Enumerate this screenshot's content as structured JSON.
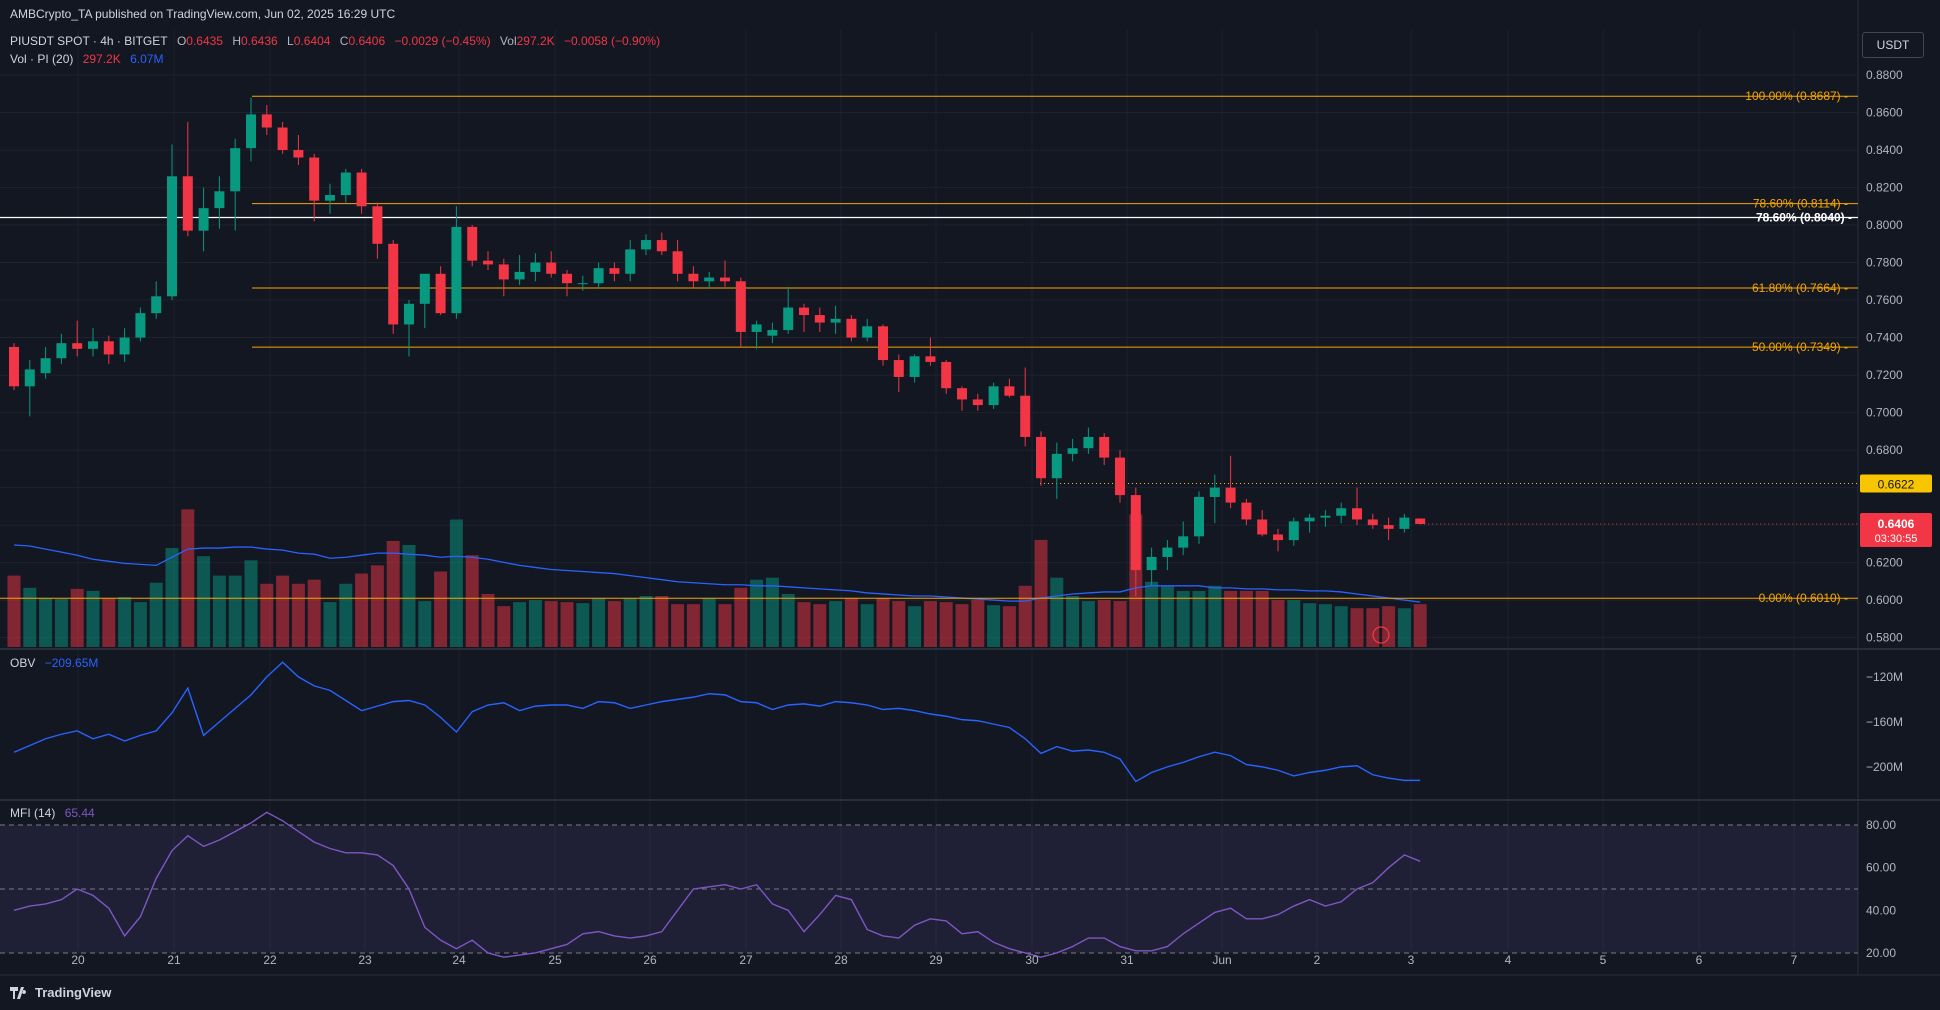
{
  "header": {
    "published": "AMBCrypto_TA published on TradingView.com, Jun 02, 2025 16:29 UTC",
    "symbol": "PIUSDT SPOT · 4h · BITGET",
    "o_label": "O",
    "o_value": "0.6435",
    "h_label": "H",
    "h_value": "0.6436",
    "l_label": "L",
    "l_value": "0.6404",
    "c_label": "C",
    "c_value": "0.6406",
    "change": "−0.0029 (−0.45%)",
    "vol_label": "Vol",
    "vol_value": "297.2K",
    "vol_change": "−0.0058 (−0.90%)",
    "vol_indicator": "Vol · PI (20)",
    "vol_indicator_v1": "297.2K",
    "vol_indicator_v2": "6.07M",
    "obv_label": "OBV",
    "obv_value": "−209.65M",
    "mfi_label": "MFI (14)",
    "mfi_value": "65.44",
    "unit": "USDT",
    "brand": "TradingView"
  },
  "colors": {
    "bg": "#131722",
    "up": "#089981",
    "down": "#f23645",
    "fib": "#f7a600",
    "obv": "#2962ff",
    "mfi": "#7e57c2",
    "grid": "#1e222d"
  },
  "chart_data": [
    {
      "type": "candlestick",
      "symbol": "PIUSDT",
      "timeframe": "4h",
      "ylim": [
        0.575,
        0.888
      ],
      "y_ticks": [
        "0.8800",
        "0.8600",
        "0.8400",
        "0.8200",
        "0.8000",
        "0.7800",
        "0.7600",
        "0.7400",
        "0.7200",
        "0.7000",
        "0.6800",
        "0.6600",
        "0.6400",
        "0.6200",
        "0.6000",
        "0.5800"
      ],
      "x_ticks": [
        "20",
        "21",
        "22",
        "23",
        "24",
        "25",
        "26",
        "27",
        "28",
        "29",
        "30",
        "31",
        "Jun",
        "2",
        "3",
        "4",
        "5",
        "6",
        "7"
      ],
      "candles": [
        {
          "o": 0.735,
          "h": 0.737,
          "l": 0.712,
          "c": 0.714
        },
        {
          "o": 0.714,
          "h": 0.728,
          "l": 0.698,
          "c": 0.723
        },
        {
          "o": 0.721,
          "h": 0.735,
          "l": 0.718,
          "c": 0.729
        },
        {
          "o": 0.729,
          "h": 0.742,
          "l": 0.726,
          "c": 0.737
        },
        {
          "o": 0.737,
          "h": 0.749,
          "l": 0.73,
          "c": 0.734
        },
        {
          "o": 0.734,
          "h": 0.745,
          "l": 0.73,
          "c": 0.738
        },
        {
          "o": 0.738,
          "h": 0.741,
          "l": 0.726,
          "c": 0.731
        },
        {
          "o": 0.731,
          "h": 0.745,
          "l": 0.727,
          "c": 0.74
        },
        {
          "o": 0.74,
          "h": 0.756,
          "l": 0.738,
          "c": 0.753
        },
        {
          "o": 0.753,
          "h": 0.77,
          "l": 0.75,
          "c": 0.762
        },
        {
          "o": 0.762,
          "h": 0.843,
          "l": 0.76,
          "c": 0.826
        },
        {
          "o": 0.826,
          "h": 0.855,
          "l": 0.794,
          "c": 0.797
        },
        {
          "o": 0.797,
          "h": 0.82,
          "l": 0.786,
          "c": 0.809
        },
        {
          "o": 0.809,
          "h": 0.826,
          "l": 0.798,
          "c": 0.818
        },
        {
          "o": 0.818,
          "h": 0.846,
          "l": 0.797,
          "c": 0.841
        },
        {
          "o": 0.841,
          "h": 0.868,
          "l": 0.834,
          "c": 0.859
        },
        {
          "o": 0.859,
          "h": 0.864,
          "l": 0.848,
          "c": 0.852
        },
        {
          "o": 0.852,
          "h": 0.855,
          "l": 0.838,
          "c": 0.84
        },
        {
          "o": 0.84,
          "h": 0.848,
          "l": 0.832,
          "c": 0.836
        },
        {
          "o": 0.836,
          "h": 0.838,
          "l": 0.802,
          "c": 0.813
        },
        {
          "o": 0.813,
          "h": 0.822,
          "l": 0.806,
          "c": 0.816
        },
        {
          "o": 0.816,
          "h": 0.83,
          "l": 0.812,
          "c": 0.828
        },
        {
          "o": 0.828,
          "h": 0.83,
          "l": 0.806,
          "c": 0.81
        },
        {
          "o": 0.81,
          "h": 0.812,
          "l": 0.782,
          "c": 0.79
        },
        {
          "o": 0.79,
          "h": 0.792,
          "l": 0.742,
          "c": 0.747
        },
        {
          "o": 0.747,
          "h": 0.76,
          "l": 0.73,
          "c": 0.758
        },
        {
          "o": 0.758,
          "h": 0.773,
          "l": 0.745,
          "c": 0.774
        },
        {
          "o": 0.774,
          "h": 0.778,
          "l": 0.752,
          "c": 0.753
        },
        {
          "o": 0.753,
          "h": 0.81,
          "l": 0.75,
          "c": 0.799
        },
        {
          "o": 0.799,
          "h": 0.8,
          "l": 0.778,
          "c": 0.781
        },
        {
          "o": 0.781,
          "h": 0.786,
          "l": 0.776,
          "c": 0.779
        },
        {
          "o": 0.779,
          "h": 0.782,
          "l": 0.762,
          "c": 0.771
        },
        {
          "o": 0.771,
          "h": 0.784,
          "l": 0.768,
          "c": 0.775
        },
        {
          "o": 0.775,
          "h": 0.785,
          "l": 0.77,
          "c": 0.78
        },
        {
          "o": 0.78,
          "h": 0.786,
          "l": 0.772,
          "c": 0.774
        },
        {
          "o": 0.774,
          "h": 0.776,
          "l": 0.762,
          "c": 0.769
        },
        {
          "o": 0.769,
          "h": 0.773,
          "l": 0.765,
          "c": 0.769
        },
        {
          "o": 0.769,
          "h": 0.78,
          "l": 0.766,
          "c": 0.777
        },
        {
          "o": 0.777,
          "h": 0.78,
          "l": 0.77,
          "c": 0.774
        },
        {
          "o": 0.774,
          "h": 0.792,
          "l": 0.77,
          "c": 0.787
        },
        {
          "o": 0.787,
          "h": 0.795,
          "l": 0.784,
          "c": 0.792
        },
        {
          "o": 0.792,
          "h": 0.796,
          "l": 0.784,
          "c": 0.786
        },
        {
          "o": 0.786,
          "h": 0.792,
          "l": 0.77,
          "c": 0.774
        },
        {
          "o": 0.774,
          "h": 0.778,
          "l": 0.766,
          "c": 0.77
        },
        {
          "o": 0.77,
          "h": 0.775,
          "l": 0.766,
          "c": 0.772
        },
        {
          "o": 0.772,
          "h": 0.781,
          "l": 0.767,
          "c": 0.77
        },
        {
          "o": 0.77,
          "h": 0.772,
          "l": 0.735,
          "c": 0.743
        },
        {
          "o": 0.743,
          "h": 0.749,
          "l": 0.734,
          "c": 0.747
        },
        {
          "o": 0.741,
          "h": 0.748,
          "l": 0.737,
          "c": 0.744
        },
        {
          "o": 0.744,
          "h": 0.767,
          "l": 0.742,
          "c": 0.756
        },
        {
          "o": 0.756,
          "h": 0.758,
          "l": 0.743,
          "c": 0.752
        },
        {
          "o": 0.752,
          "h": 0.756,
          "l": 0.743,
          "c": 0.748
        },
        {
          "o": 0.748,
          "h": 0.757,
          "l": 0.742,
          "c": 0.75
        },
        {
          "o": 0.75,
          "h": 0.752,
          "l": 0.738,
          "c": 0.74
        },
        {
          "o": 0.74,
          "h": 0.75,
          "l": 0.738,
          "c": 0.746
        },
        {
          "o": 0.746,
          "h": 0.747,
          "l": 0.725,
          "c": 0.728
        },
        {
          "o": 0.728,
          "h": 0.731,
          "l": 0.711,
          "c": 0.719
        },
        {
          "o": 0.719,
          "h": 0.731,
          "l": 0.716,
          "c": 0.73
        },
        {
          "o": 0.73,
          "h": 0.74,
          "l": 0.725,
          "c": 0.727
        },
        {
          "o": 0.727,
          "h": 0.728,
          "l": 0.71,
          "c": 0.713
        },
        {
          "o": 0.713,
          "h": 0.714,
          "l": 0.701,
          "c": 0.707
        },
        {
          "o": 0.707,
          "h": 0.71,
          "l": 0.701,
          "c": 0.704
        },
        {
          "o": 0.704,
          "h": 0.716,
          "l": 0.702,
          "c": 0.714
        },
        {
          "o": 0.714,
          "h": 0.718,
          "l": 0.708,
          "c": 0.709
        },
        {
          "o": 0.709,
          "h": 0.724,
          "l": 0.682,
          "c": 0.687
        },
        {
          "o": 0.687,
          "h": 0.69,
          "l": 0.661,
          "c": 0.665
        },
        {
          "o": 0.665,
          "h": 0.684,
          "l": 0.654,
          "c": 0.678
        },
        {
          "o": 0.678,
          "h": 0.686,
          "l": 0.674,
          "c": 0.681
        },
        {
          "o": 0.681,
          "h": 0.692,
          "l": 0.678,
          "c": 0.687
        },
        {
          "o": 0.687,
          "h": 0.689,
          "l": 0.672,
          "c": 0.676
        },
        {
          "o": 0.676,
          "h": 0.68,
          "l": 0.652,
          "c": 0.656
        },
        {
          "o": 0.656,
          "h": 0.66,
          "l": 0.602,
          "c": 0.616
        },
        {
          "o": 0.616,
          "h": 0.628,
          "l": 0.608,
          "c": 0.623
        },
        {
          "o": 0.623,
          "h": 0.632,
          "l": 0.616,
          "c": 0.628
        },
        {
          "o": 0.628,
          "h": 0.642,
          "l": 0.624,
          "c": 0.634
        },
        {
          "o": 0.634,
          "h": 0.658,
          "l": 0.63,
          "c": 0.655
        },
        {
          "o": 0.655,
          "h": 0.667,
          "l": 0.641,
          "c": 0.66
        },
        {
          "o": 0.66,
          "h": 0.677,
          "l": 0.649,
          "c": 0.652
        },
        {
          "o": 0.652,
          "h": 0.654,
          "l": 0.64,
          "c": 0.643
        },
        {
          "o": 0.643,
          "h": 0.648,
          "l": 0.634,
          "c": 0.635
        },
        {
          "o": 0.635,
          "h": 0.638,
          "l": 0.626,
          "c": 0.632
        },
        {
          "o": 0.632,
          "h": 0.644,
          "l": 0.629,
          "c": 0.642
        },
        {
          "o": 0.642,
          "h": 0.646,
          "l": 0.636,
          "c": 0.644
        },
        {
          "o": 0.644,
          "h": 0.648,
          "l": 0.639,
          "c": 0.645
        },
        {
          "o": 0.645,
          "h": 0.652,
          "l": 0.641,
          "c": 0.649
        },
        {
          "o": 0.649,
          "h": 0.66,
          "l": 0.64,
          "c": 0.643
        },
        {
          "o": 0.643,
          "h": 0.646,
          "l": 0.638,
          "c": 0.64
        },
        {
          "o": 0.64,
          "h": 0.644,
          "l": 0.632,
          "c": 0.638
        },
        {
          "o": 0.638,
          "h": 0.646,
          "l": 0.636,
          "c": 0.644
        },
        {
          "o": 0.6435,
          "h": 0.6436,
          "l": 0.6404,
          "c": 0.6406
        }
      ],
      "volume": [
        70,
        58,
        48,
        47,
        57,
        55,
        48,
        49,
        44,
        63,
        97,
        135,
        89,
        70,
        70,
        85,
        62,
        70,
        62,
        66,
        44,
        62,
        72,
        80,
        104,
        100,
        45,
        74,
        125,
        90,
        52,
        40,
        44,
        46,
        45,
        44,
        43,
        48,
        45,
        48,
        50,
        50,
        42,
        42,
        48,
        42,
        58,
        66,
        68,
        52,
        44,
        42,
        45,
        48,
        42,
        48,
        45,
        40,
        45,
        44,
        42,
        46,
        41,
        40,
        60,
        105,
        68,
        50,
        45,
        46,
        45,
        130,
        64,
        60,
        55,
        55,
        60,
        55,
        55,
        55,
        46,
        46,
        43,
        42,
        40,
        38,
        38,
        40,
        38,
        42
      ],
      "volume_ma": [
        100,
        99,
        96,
        93,
        90,
        86,
        84,
        82,
        81,
        80,
        88,
        96,
        97,
        97,
        98,
        98,
        96,
        95,
        92,
        91,
        87,
        88,
        90,
        92,
        92,
        91,
        90,
        88,
        89,
        88,
        86,
        83,
        80,
        78,
        76,
        75,
        74,
        73,
        72,
        70,
        68,
        66,
        64,
        63,
        62,
        61,
        61,
        60,
        60,
        59,
        58,
        57,
        56,
        55,
        53,
        52,
        51,
        50,
        50,
        49,
        48,
        47,
        46,
        45,
        45,
        48,
        50,
        52,
        53,
        54,
        54,
        58,
        60,
        60,
        60,
        60,
        58,
        58,
        57,
        57,
        56,
        56,
        55,
        55,
        54,
        52,
        50,
        48,
        46,
        44
      ],
      "current_price": "0.6406",
      "countdown": "03:30:55",
      "level_line": "0.6622",
      "fib_levels": [
        {
          "label": "100.00% (0.8687)",
          "value": 0.8687
        },
        {
          "label": "78.60% (0.8114)",
          "value": 0.8114
        },
        {
          "label": "61.80% (0.7664)",
          "value": 0.7664
        },
        {
          "label": "50.00% (0.7349)",
          "value": 0.7349
        },
        {
          "label": "0.00% (0.6010)",
          "value": 0.601
        }
      ],
      "horizontal_level": {
        "label": "78.60% (0.8040)",
        "value": 0.804
      }
    },
    {
      "type": "line",
      "name": "OBV",
      "ylim": [
        -225,
        -105
      ],
      "y_ticks": [
        "−120M",
        "−160M",
        "−200M"
      ],
      "values": [
        -187,
        -181,
        -175,
        -171,
        -168,
        -175,
        -171,
        -177,
        -172,
        -168,
        -152,
        -130,
        -172,
        -160,
        -148,
        -136,
        -120,
        -107,
        -120,
        -128,
        -132,
        -141,
        -150,
        -146,
        -142,
        -141,
        -145,
        -156,
        -169,
        -151,
        -145,
        -143,
        -150,
        -146,
        -145,
        -145,
        -148,
        -142,
        -143,
        -148,
        -145,
        -142,
        -140,
        -138,
        -135,
        -136,
        -142,
        -143,
        -149,
        -145,
        -144,
        -146,
        -142,
        -143,
        -145,
        -149,
        -148,
        -150,
        -153,
        -155,
        -158,
        -159,
        -162,
        -165,
        -175,
        -188,
        -182,
        -186,
        -185,
        -187,
        -193,
        -213,
        -205,
        -200,
        -196,
        -191,
        -187,
        -190,
        -198,
        -200,
        -203,
        -208,
        -205,
        -203,
        -200,
        -199,
        -207,
        -210,
        -212,
        -212
      ]
    },
    {
      "type": "line",
      "name": "MFI (14)",
      "ylim": [
        12,
        88
      ],
      "y_ticks": [
        "80.00",
        "60.00",
        "40.00",
        "20.00"
      ],
      "values": [
        40,
        42,
        43,
        45,
        50,
        47,
        41,
        28,
        37,
        55,
        68,
        75,
        70,
        73,
        77,
        81,
        86,
        82,
        77,
        72,
        69,
        67,
        67,
        66,
        61,
        50,
        32,
        26,
        22,
        26,
        20,
        18,
        19,
        20,
        22,
        24,
        29,
        30,
        28,
        27,
        28,
        30,
        40,
        50,
        51,
        52,
        50,
        52,
        43,
        40,
        30,
        38,
        47,
        45,
        31,
        28,
        27,
        33,
        36,
        35,
        29,
        30,
        25,
        22,
        20,
        18,
        20,
        23,
        27,
        27,
        23,
        21,
        21,
        23,
        29,
        34,
        39,
        41,
        36,
        36,
        38,
        42,
        45,
        42,
        44,
        50,
        53,
        60,
        66,
        63
      ]
    }
  ]
}
